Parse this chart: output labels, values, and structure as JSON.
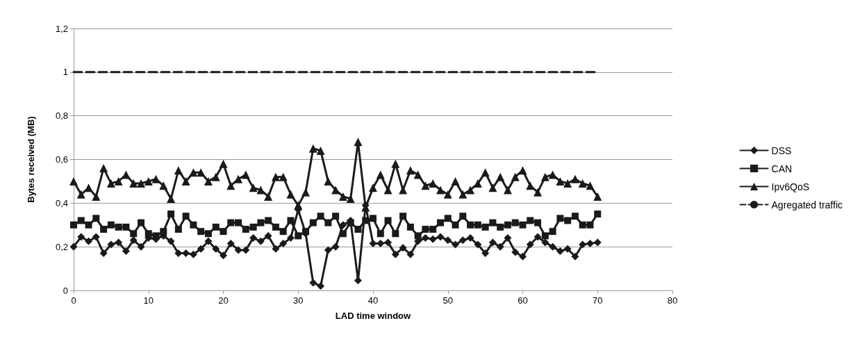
{
  "chart_data": {
    "type": "line",
    "xlabel": "LAD time window",
    "ylabel": "Bytes received (MB)",
    "x": [
      0,
      1,
      2,
      3,
      4,
      5,
      6,
      7,
      8,
      9,
      10,
      11,
      12,
      13,
      14,
      15,
      16,
      17,
      18,
      19,
      20,
      21,
      22,
      23,
      24,
      25,
      26,
      27,
      28,
      29,
      30,
      31,
      32,
      33,
      34,
      35,
      36,
      37,
      38,
      39,
      40,
      41,
      42,
      43,
      44,
      45,
      46,
      47,
      48,
      49,
      50,
      51,
      52,
      53,
      54,
      55,
      56,
      57,
      58,
      59,
      60,
      61,
      62,
      63,
      64,
      65,
      66,
      67,
      68,
      69,
      70
    ],
    "series": [
      {
        "name": "DSS",
        "color": "#1a1a1a",
        "marker": "diamond",
        "values": [
          0.2,
          0.245,
          0.225,
          0.245,
          0.17,
          0.21,
          0.22,
          0.18,
          0.23,
          0.2,
          0.24,
          0.235,
          0.25,
          0.225,
          0.17,
          0.17,
          0.165,
          0.19,
          0.225,
          0.19,
          0.16,
          0.215,
          0.185,
          0.185,
          0.24,
          0.225,
          0.25,
          0.19,
          0.215,
          0.24,
          0.37,
          0.26,
          0.035,
          0.02,
          0.185,
          0.2,
          0.3,
          0.32,
          0.045,
          0.39,
          0.215,
          0.215,
          0.22,
          0.165,
          0.195,
          0.165,
          0.225,
          0.24,
          0.235,
          0.245,
          0.23,
          0.21,
          0.23,
          0.24,
          0.21,
          0.17,
          0.22,
          0.2,
          0.24,
          0.175,
          0.155,
          0.21,
          0.245,
          0.22,
          0.2,
          0.18,
          0.19,
          0.155,
          0.21,
          0.215,
          0.22
        ]
      },
      {
        "name": "CAN",
        "color": "#1a1a1a",
        "marker": "square",
        "values": [
          0.3,
          0.32,
          0.3,
          0.33,
          0.28,
          0.3,
          0.29,
          0.29,
          0.26,
          0.31,
          0.26,
          0.25,
          0.27,
          0.35,
          0.28,
          0.34,
          0.3,
          0.27,
          0.26,
          0.29,
          0.27,
          0.31,
          0.31,
          0.28,
          0.29,
          0.31,
          0.32,
          0.29,
          0.27,
          0.32,
          0.25,
          0.27,
          0.31,
          0.34,
          0.31,
          0.34,
          0.26,
          0.31,
          0.28,
          0.32,
          0.33,
          0.26,
          0.32,
          0.26,
          0.34,
          0.29,
          0.25,
          0.28,
          0.28,
          0.31,
          0.33,
          0.3,
          0.34,
          0.3,
          0.3,
          0.29,
          0.31,
          0.29,
          0.3,
          0.31,
          0.3,
          0.32,
          0.31,
          0.25,
          0.27,
          0.33,
          0.32,
          0.34,
          0.3,
          0.3,
          0.35
        ]
      },
      {
        "name": "Ipv6QoS",
        "color": "#1a1a1a",
        "marker": "triangle",
        "values": [
          0.5,
          0.44,
          0.47,
          0.43,
          0.56,
          0.49,
          0.5,
          0.53,
          0.49,
          0.49,
          0.5,
          0.51,
          0.48,
          0.42,
          0.55,
          0.5,
          0.54,
          0.54,
          0.5,
          0.52,
          0.58,
          0.48,
          0.51,
          0.53,
          0.47,
          0.46,
          0.43,
          0.52,
          0.52,
          0.44,
          0.39,
          0.45,
          0.65,
          0.64,
          0.5,
          0.46,
          0.43,
          0.42,
          0.68,
          0.38,
          0.47,
          0.53,
          0.46,
          0.58,
          0.46,
          0.55,
          0.53,
          0.48,
          0.49,
          0.46,
          0.44,
          0.5,
          0.44,
          0.46,
          0.49,
          0.54,
          0.47,
          0.52,
          0.46,
          0.52,
          0.55,
          0.48,
          0.45,
          0.52,
          0.53,
          0.5,
          0.49,
          0.51,
          0.49,
          0.48,
          0.43
        ]
      },
      {
        "name": "Agregated traffic",
        "color": "#1a1a1a",
        "marker": "none",
        "line_style": "dashed",
        "x": [
          0,
          70
        ],
        "values": [
          1,
          1
        ]
      }
    ],
    "xlim": [
      0,
      80
    ],
    "xticks": [
      0,
      10,
      20,
      30,
      40,
      50,
      60,
      70,
      80
    ],
    "ylim": [
      0,
      1.2
    ],
    "yticks": [
      0,
      {
        "value": 0.2,
        "label": "0,2"
      },
      {
        "value": 0.4,
        "label": "0,4"
      },
      {
        "value": 0.6,
        "label": "0,6"
      },
      {
        "value": 0.8,
        "label": "0,8"
      },
      1,
      {
        "value": 1.2,
        "label": "1,2"
      }
    ],
    "grid": "y",
    "legend": "right"
  }
}
